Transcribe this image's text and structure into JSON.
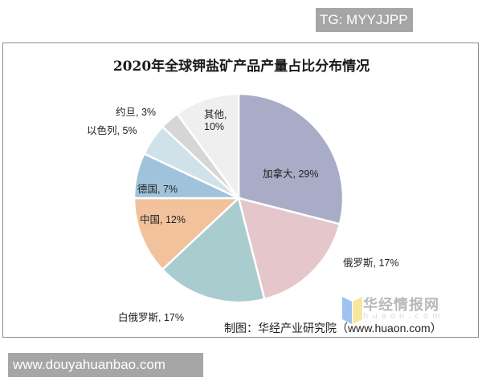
{
  "watermark_top": "TG: MYYJJPP",
  "watermark_bottom": "www.douyahuanbao.com",
  "chart": {
    "title": "2020年全球钾盐矿产品产量占比分布情况",
    "source": "制图：华经产业研究院（www.huaon.com）",
    "logo_text": "华经情报网",
    "logo_sub": "huaon.com",
    "labels": {
      "canada": "加拿大, 29%",
      "russia": "俄罗斯, 17%",
      "belarus": "白俄罗斯, 17%",
      "china": "中国, 12%",
      "germany": "德国, 7%",
      "israel": "以色列, 5%",
      "jordan": "约旦, 3%",
      "other_1": "其他,",
      "other_2": "10%"
    }
  },
  "chart_data": {
    "type": "pie",
    "title": "2020年全球钾盐矿产品产量占比分布情况",
    "categories": [
      "加拿大",
      "俄罗斯",
      "白俄罗斯",
      "中国",
      "德国",
      "以色列",
      "约旦",
      "其他"
    ],
    "values": [
      29,
      17,
      17,
      12,
      7,
      5,
      3,
      10
    ],
    "unit": "%",
    "colors": [
      "#a8acc6",
      "#e5c6cb",
      "#a9cdce",
      "#f1c29b",
      "#9fc3da",
      "#cfe2e9",
      "#d6d6d6",
      "#efefef"
    ],
    "start_angle": "12 o'clock, clockwise",
    "source": "制图：华经产业研究院（www.huaon.com）"
  }
}
